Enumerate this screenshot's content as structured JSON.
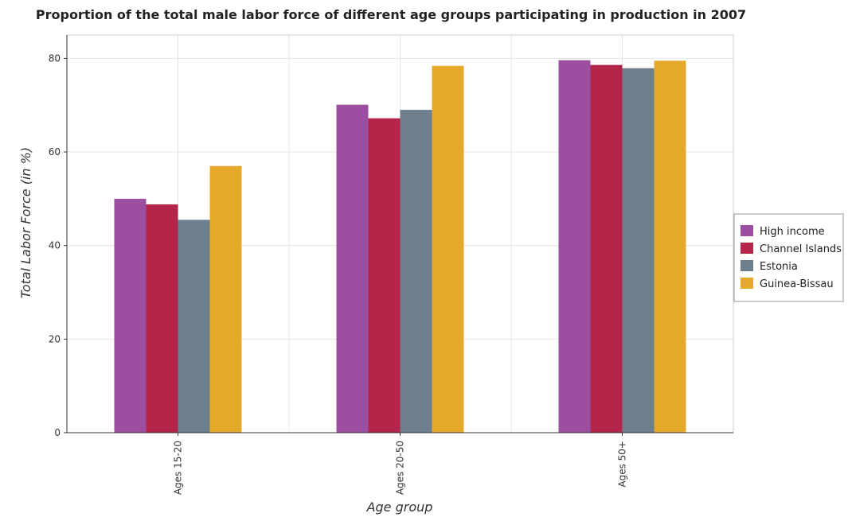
{
  "chart_data": {
    "type": "bar",
    "title": "Proportion of the total male labor force of different age groups participating in production in 2007",
    "xlabel": "Age group",
    "ylabel": "Total Labor Force (in %)",
    "categories": [
      "Ages 15-20",
      "Ages 20-50",
      "Ages 50+"
    ],
    "ylim": [
      0,
      85
    ],
    "yticks": [
      0,
      20,
      40,
      60,
      80
    ],
    "grid": true,
    "legend_position": "right",
    "series": [
      {
        "name": "High income",
        "color": "#9c4fa0",
        "values": [
          50.0,
          70.1,
          79.6
        ]
      },
      {
        "name": "Channel Islands",
        "color": "#b3264a",
        "values": [
          48.8,
          67.2,
          78.6
        ]
      },
      {
        "name": "Estonia",
        "color": "#6d7f8c",
        "values": [
          45.5,
          69.0,
          77.9
        ]
      },
      {
        "name": "Guinea-Bissau",
        "color": "#e5a829",
        "values": [
          57.0,
          78.4,
          79.5
        ]
      }
    ]
  }
}
